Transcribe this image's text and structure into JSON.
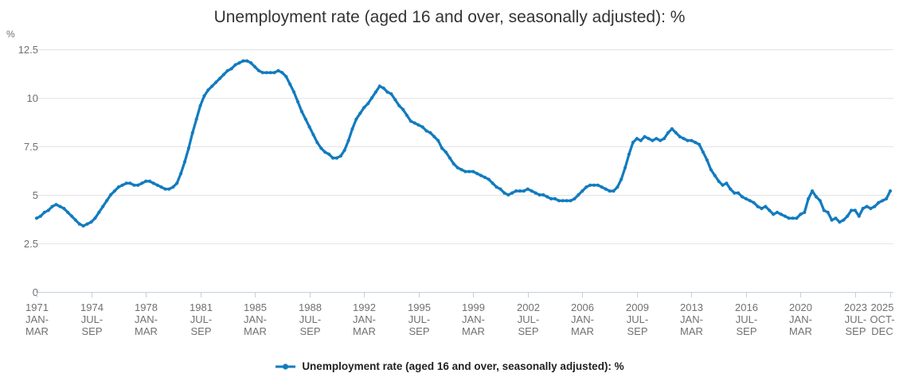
{
  "title": "Unemployment rate (aged 16 and over, seasonally adjusted): %",
  "legend": {
    "label": "Unemployment rate (aged 16 and over, seasonally adjusted): %"
  },
  "colors": {
    "line": "#127bbf",
    "grid": "#e4e4e4",
    "axis": "#c3d0dd",
    "tick_text": "#707071",
    "title_text": "#333333",
    "legend_text": "#222222"
  },
  "y_axis": {
    "unit": "%",
    "tick_labels": [
      "12.5",
      "10",
      "7.5",
      "5",
      "2.5",
      "0"
    ],
    "tick_values": [
      12.5,
      10,
      7.5,
      5,
      2.5,
      0
    ],
    "min": 0,
    "max": 12.5
  },
  "x_axis": {
    "ticks": [
      {
        "quarter_index": 0,
        "lines": [
          "1971",
          "JAN-",
          "MAR"
        ]
      },
      {
        "quarter_index": 14,
        "lines": [
          "1974",
          "JUL-",
          "SEP"
        ]
      },
      {
        "quarter_index": 28,
        "lines": [
          "1978",
          "JAN-",
          "MAR"
        ]
      },
      {
        "quarter_index": 42,
        "lines": [
          "1981",
          "JUL-",
          "SEP"
        ]
      },
      {
        "quarter_index": 56,
        "lines": [
          "1985",
          "JAN-",
          "MAR"
        ]
      },
      {
        "quarter_index": 70,
        "lines": [
          "1988",
          "JUL-",
          "SEP"
        ]
      },
      {
        "quarter_index": 84,
        "lines": [
          "1992",
          "JAN-",
          "MAR"
        ]
      },
      {
        "quarter_index": 98,
        "lines": [
          "1995",
          "JUL-",
          "SEP"
        ]
      },
      {
        "quarter_index": 112,
        "lines": [
          "1999",
          "JAN-",
          "MAR"
        ]
      },
      {
        "quarter_index": 126,
        "lines": [
          "2002",
          "JUL-",
          "SEP"
        ]
      },
      {
        "quarter_index": 140,
        "lines": [
          "2006",
          "JAN-",
          "MAR"
        ]
      },
      {
        "quarter_index": 154,
        "lines": [
          "2009",
          "JUL-",
          "SEP"
        ]
      },
      {
        "quarter_index": 168,
        "lines": [
          "2013",
          "JAN-",
          "MAR"
        ]
      },
      {
        "quarter_index": 182,
        "lines": [
          "2016",
          "JUL-",
          "SEP"
        ]
      },
      {
        "quarter_index": 196,
        "lines": [
          "2020",
          "JAN-",
          "MAR"
        ]
      },
      {
        "quarter_index": 210,
        "lines": [
          "2023",
          "JUL-",
          "SEP"
        ]
      },
      {
        "quarter_index": 219,
        "lines": [
          "2025",
          "OCT-",
          "DEC"
        ]
      }
    ]
  },
  "chart_data": {
    "type": "line",
    "title": "Unemployment rate (aged 16 and over, seasonally adjusted): %",
    "xlabel": "",
    "ylabel": "%",
    "ylim": [
      0,
      12.5
    ],
    "grid": true,
    "legend_position": "bottom",
    "marker": "circle",
    "x_start": "1971 JAN-MAR",
    "x_end": "2025 OCT-DEC",
    "frequency": "quarterly",
    "series": [
      {
        "name": "Unemployment rate (aged 16 and over, seasonally adjusted): %",
        "values": [
          3.8,
          3.9,
          4.1,
          4.2,
          4.4,
          4.5,
          4.4,
          4.3,
          4.1,
          3.9,
          3.7,
          3.5,
          3.4,
          3.5,
          3.6,
          3.8,
          4.1,
          4.4,
          4.7,
          5.0,
          5.2,
          5.4,
          5.5,
          5.6,
          5.6,
          5.5,
          5.5,
          5.6,
          5.7,
          5.7,
          5.6,
          5.5,
          5.4,
          5.3,
          5.3,
          5.4,
          5.6,
          6.1,
          6.7,
          7.4,
          8.2,
          8.9,
          9.6,
          10.1,
          10.4,
          10.6,
          10.8,
          11.0,
          11.2,
          11.4,
          11.5,
          11.7,
          11.8,
          11.9,
          11.9,
          11.8,
          11.6,
          11.4,
          11.3,
          11.3,
          11.3,
          11.3,
          11.4,
          11.3,
          11.1,
          10.7,
          10.3,
          9.8,
          9.3,
          8.9,
          8.5,
          8.1,
          7.7,
          7.4,
          7.2,
          7.1,
          6.9,
          6.9,
          7.0,
          7.3,
          7.8,
          8.4,
          8.9,
          9.2,
          9.5,
          9.7,
          10.0,
          10.3,
          10.6,
          10.5,
          10.3,
          10.2,
          9.9,
          9.6,
          9.4,
          9.1,
          8.8,
          8.7,
          8.6,
          8.5,
          8.3,
          8.2,
          8.0,
          7.8,
          7.4,
          7.2,
          6.9,
          6.6,
          6.4,
          6.3,
          6.2,
          6.2,
          6.2,
          6.1,
          6.0,
          5.9,
          5.8,
          5.6,
          5.4,
          5.3,
          5.1,
          5.0,
          5.1,
          5.2,
          5.2,
          5.2,
          5.3,
          5.2,
          5.1,
          5.0,
          5.0,
          4.9,
          4.8,
          4.8,
          4.7,
          4.7,
          4.7,
          4.7,
          4.8,
          5.0,
          5.2,
          5.4,
          5.5,
          5.5,
          5.5,
          5.4,
          5.3,
          5.2,
          5.2,
          5.4,
          5.8,
          6.4,
          7.1,
          7.7,
          7.9,
          7.8,
          8.0,
          7.9,
          7.8,
          7.9,
          7.8,
          7.9,
          8.2,
          8.4,
          8.2,
          8.0,
          7.9,
          7.8,
          7.8,
          7.7,
          7.6,
          7.2,
          6.8,
          6.3,
          6.0,
          5.7,
          5.5,
          5.6,
          5.3,
          5.1,
          5.1,
          4.9,
          4.8,
          4.7,
          4.6,
          4.4,
          4.3,
          4.4,
          4.2,
          4.0,
          4.1,
          4.0,
          3.9,
          3.8,
          3.8,
          3.8,
          4.0,
          4.1,
          4.8,
          5.2,
          4.9,
          4.7,
          4.2,
          4.1,
          3.7,
          3.8,
          3.6,
          3.7,
          3.9,
          4.2,
          4.2,
          3.9,
          4.3,
          4.4,
          4.3,
          4.4,
          4.6,
          4.7,
          4.8,
          5.2
        ]
      }
    ]
  }
}
